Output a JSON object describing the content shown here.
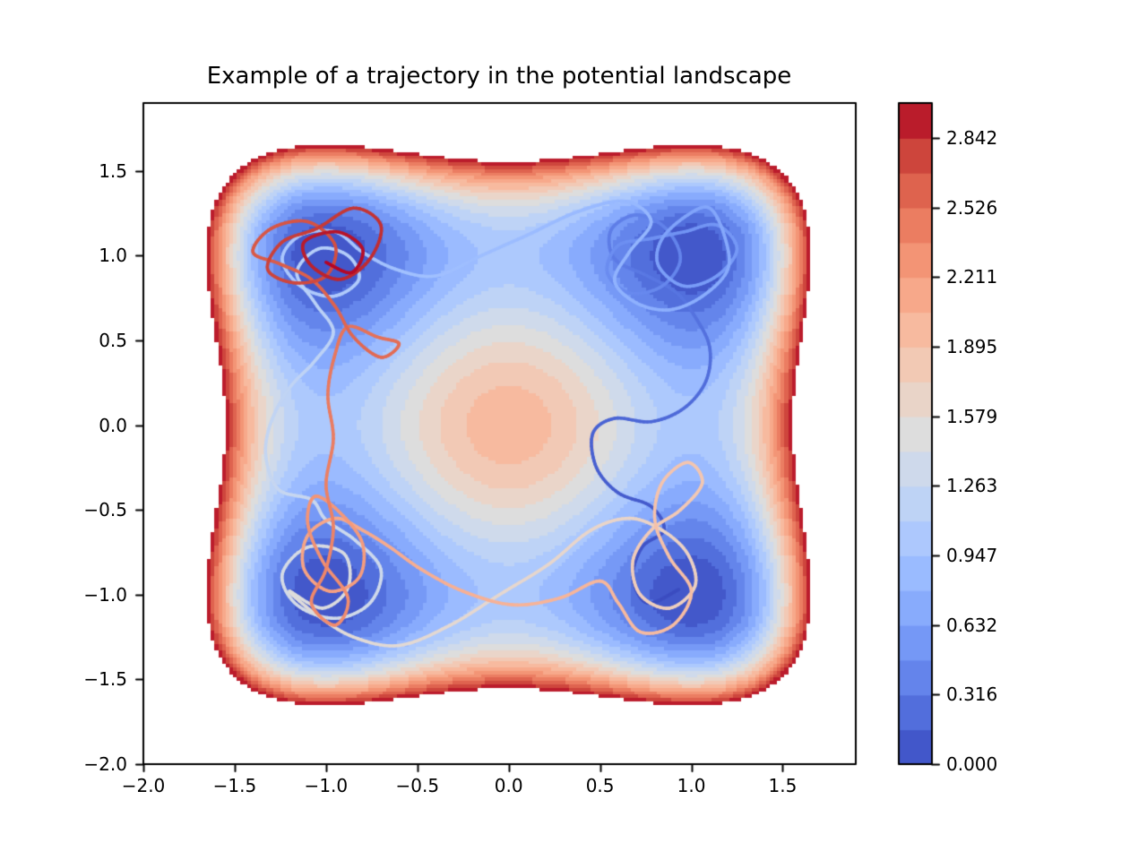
{
  "figure": {
    "background": "#ffffff"
  },
  "chart_data": {
    "type": "contour",
    "title": "Example of a trajectory in the potential landscape",
    "potential": {
      "expression": "V(x, y) = (x² − 1)² + (y² − 1)²",
      "wells": [
        [
          -1,
          1
        ],
        [
          1,
          1
        ],
        [
          -1,
          -1
        ],
        [
          1,
          -1
        ]
      ],
      "center_barrier_height": 2.0
    },
    "x": {
      "range": [
        -2.0,
        1.9
      ],
      "tick_values": [
        -2.0,
        -1.5,
        -1.0,
        -0.5,
        0.0,
        0.5,
        1.0,
        1.5
      ],
      "tick_labels": [
        "−2.0",
        "−1.5",
        "−1.0",
        "−0.5",
        "0.0",
        "0.5",
        "1.0",
        "1.5"
      ]
    },
    "y": {
      "range": [
        -2.0,
        1.9
      ],
      "tick_values": [
        -2.0,
        -1.5,
        -1.0,
        -0.5,
        0.0,
        0.5,
        1.0,
        1.5
      ],
      "tick_labels": [
        "−2.0",
        "−1.5",
        "−1.0",
        "−0.5",
        "0.0",
        "0.5",
        "1.0",
        "1.5"
      ]
    },
    "levels": {
      "min": 0,
      "max": 3,
      "n_bands": 19,
      "above_max": "blank"
    },
    "colormap": {
      "name": "coolwarm",
      "stops": [
        [
          59,
          76,
          192
        ],
        [
          68,
          90,
          204
        ],
        [
          77,
          104,
          215
        ],
        [
          87,
          117,
          225
        ],
        [
          98,
          130,
          234
        ],
        [
          108,
          142,
          241
        ],
        [
          119,
          154,
          247
        ],
        [
          130,
          165,
          251
        ],
        [
          141,
          176,
          254
        ],
        [
          152,
          185,
          255
        ],
        [
          163,
          194,
          255
        ],
        [
          174,
          201,
          253
        ],
        [
          184,
          208,
          249
        ],
        [
          194,
          213,
          244
        ],
        [
          204,
          217,
          238
        ],
        [
          213,
          219,
          230
        ],
        [
          221,
          221,
          221
        ],
        [
          229,
          216,
          209
        ],
        [
          236,
          211,
          197
        ],
        [
          241,
          204,
          185
        ],
        [
          245,
          196,
          173
        ],
        [
          247,
          187,
          160
        ],
        [
          248,
          177,
          149
        ],
        [
          247,
          166,
          135
        ],
        [
          245,
          154,
          123
        ],
        [
          241,
          141,
          111
        ],
        [
          236,
          127,
          99
        ],
        [
          229,
          112,
          88
        ],
        [
          221,
          96,
          76
        ],
        [
          211,
          79,
          66
        ],
        [
          200,
          59,
          55
        ],
        [
          188,
          33,
          45
        ],
        [
          180,
          4,
          38
        ]
      ]
    },
    "colorbar": {
      "tick_values": [
        0.0,
        0.316,
        0.632,
        0.947,
        1.263,
        1.579,
        1.895,
        2.211,
        2.526,
        2.842
      ],
      "tick_labels": [
        "0.000",
        "0.316",
        "0.632",
        "0.947",
        "1.263",
        "1.579",
        "1.895",
        "2.211",
        "2.526",
        "2.842"
      ]
    },
    "trajectory": {
      "color_by": "time",
      "colormap": "coolwarm",
      "linewidth": 3.6,
      "points": [
        [
          0.93,
          -0.97
        ],
        [
          0.76,
          -1.05
        ],
        [
          0.68,
          -0.9
        ],
        [
          0.73,
          -0.72
        ],
        [
          0.85,
          -0.62
        ],
        [
          0.78,
          -0.48
        ],
        [
          0.6,
          -0.4
        ],
        [
          0.48,
          -0.25
        ],
        [
          0.46,
          -0.05
        ],
        [
          0.58,
          0.04
        ],
        [
          0.78,
          0.02
        ],
        [
          0.96,
          0.1
        ],
        [
          1.08,
          0.26
        ],
        [
          1.1,
          0.46
        ],
        [
          1.02,
          0.64
        ],
        [
          0.92,
          0.78
        ],
        [
          0.76,
          0.88
        ],
        [
          0.58,
          0.98
        ],
        [
          0.56,
          1.15
        ],
        [
          0.7,
          1.24
        ],
        [
          0.86,
          1.16
        ],
        [
          0.94,
          0.98
        ],
        [
          0.84,
          0.82
        ],
        [
          0.66,
          0.78
        ],
        [
          0.54,
          0.9
        ],
        [
          0.6,
          1.06
        ],
        [
          0.78,
          1.1
        ],
        [
          0.96,
          1.14
        ],
        [
          1.14,
          1.18
        ],
        [
          1.25,
          1.04
        ],
        [
          1.14,
          0.88
        ],
        [
          0.96,
          0.82
        ],
        [
          0.82,
          0.94
        ],
        [
          0.84,
          1.1
        ],
        [
          0.98,
          1.24
        ],
        [
          1.1,
          1.28
        ],
        [
          1.18,
          1.12
        ],
        [
          1.2,
          0.92
        ],
        [
          1.06,
          0.76
        ],
        [
          0.88,
          0.68
        ],
        [
          0.7,
          0.72
        ],
        [
          0.58,
          0.85
        ],
        [
          0.66,
          1.02
        ],
        [
          0.78,
          1.2
        ],
        [
          0.64,
          1.32
        ],
        [
          0.38,
          1.26
        ],
        [
          0.1,
          1.12
        ],
        [
          -0.15,
          1.0
        ],
        [
          -0.4,
          0.88
        ],
        [
          -0.62,
          0.92
        ],
        [
          -0.8,
          1.02
        ],
        [
          -0.95,
          1.14
        ],
        [
          -1.14,
          1.12
        ],
        [
          -1.24,
          0.98
        ],
        [
          -1.14,
          0.82
        ],
        [
          -0.96,
          0.76
        ],
        [
          -0.82,
          0.86
        ],
        [
          -0.88,
          1.0
        ],
        [
          -1.04,
          1.04
        ],
        [
          -1.16,
          0.9
        ],
        [
          -1.06,
          0.72
        ],
        [
          -0.96,
          0.55
        ],
        [
          -1.06,
          0.38
        ],
        [
          -1.2,
          0.22
        ],
        [
          -1.3,
          0.02
        ],
        [
          -1.33,
          -0.18
        ],
        [
          -1.26,
          -0.38
        ],
        [
          -1.08,
          -0.44
        ],
        [
          -1.0,
          -0.56
        ],
        [
          -0.84,
          -0.68
        ],
        [
          -0.7,
          -0.85
        ],
        [
          -0.76,
          -1.05
        ],
        [
          -0.95,
          -1.14
        ],
        [
          -1.16,
          -1.06
        ],
        [
          -1.24,
          -0.88
        ],
        [
          -1.1,
          -0.72
        ],
        [
          -0.9,
          -0.76
        ],
        [
          -0.88,
          -0.96
        ],
        [
          -1.02,
          -1.08
        ],
        [
          -1.2,
          -0.98
        ],
        [
          -1.05,
          -1.12
        ],
        [
          -0.85,
          -1.25
        ],
        [
          -0.6,
          -1.3
        ],
        [
          -0.32,
          -1.18
        ],
        [
          -0.05,
          -1.0
        ],
        [
          0.22,
          -0.82
        ],
        [
          0.45,
          -0.62
        ],
        [
          0.66,
          -0.55
        ],
        [
          0.84,
          -0.62
        ],
        [
          0.98,
          -0.76
        ],
        [
          1.02,
          -0.95
        ],
        [
          0.88,
          -1.08
        ],
        [
          0.72,
          -1.0
        ],
        [
          0.68,
          -0.8
        ],
        [
          0.78,
          -0.62
        ],
        [
          0.94,
          -0.5
        ],
        [
          1.06,
          -0.34
        ],
        [
          0.98,
          -0.22
        ],
        [
          0.84,
          -0.34
        ],
        [
          0.8,
          -0.56
        ],
        [
          0.88,
          -0.78
        ],
        [
          1.0,
          -0.98
        ],
        [
          0.9,
          -1.18
        ],
        [
          0.72,
          -1.22
        ],
        [
          0.6,
          -1.05
        ],
        [
          0.5,
          -0.92
        ],
        [
          0.28,
          -1.02
        ],
        [
          0.02,
          -1.06
        ],
        [
          -0.25,
          -0.98
        ],
        [
          -0.48,
          -0.85
        ],
        [
          -0.65,
          -0.72
        ],
        [
          -0.8,
          -0.62
        ],
        [
          -0.95,
          -0.55
        ],
        [
          -1.1,
          -0.65
        ],
        [
          -1.12,
          -0.85
        ],
        [
          -0.98,
          -0.98
        ],
        [
          -0.82,
          -0.9
        ],
        [
          -0.8,
          -0.7
        ],
        [
          -0.92,
          -0.52
        ],
        [
          -1.06,
          -0.42
        ],
        [
          -1.1,
          -0.58
        ],
        [
          -1.02,
          -0.8
        ],
        [
          -0.88,
          -1.02
        ],
        [
          -0.95,
          -1.18
        ],
        [
          -1.08,
          -1.05
        ],
        [
          -1.0,
          -0.85
        ],
        [
          -0.96,
          -0.6
        ],
        [
          -1.0,
          -0.35
        ],
        [
          -0.96,
          -0.08
        ],
        [
          -0.99,
          0.18
        ],
        [
          -0.95,
          0.42
        ],
        [
          -0.88,
          0.58
        ],
        [
          -0.72,
          0.52
        ],
        [
          -0.6,
          0.48
        ],
        [
          -0.7,
          0.4
        ],
        [
          -0.85,
          0.52
        ],
        [
          -0.95,
          0.7
        ],
        [
          -1.08,
          0.86
        ],
        [
          -1.25,
          0.95
        ],
        [
          -1.4,
          1.02
        ],
        [
          -1.3,
          1.16
        ],
        [
          -1.1,
          1.2
        ],
        [
          -0.95,
          1.06
        ],
        [
          -1.0,
          0.88
        ],
        [
          -1.18,
          0.84
        ],
        [
          -1.32,
          0.92
        ],
        [
          -1.24,
          1.08
        ],
        [
          -1.05,
          1.16
        ],
        [
          -0.85,
          1.28
        ],
        [
          -0.7,
          1.18
        ],
        [
          -0.76,
          0.98
        ],
        [
          -0.92,
          0.86
        ],
        [
          -1.08,
          0.94
        ],
        [
          -1.12,
          1.08
        ],
        [
          -0.94,
          1.14
        ],
        [
          -0.8,
          1.04
        ],
        [
          -0.86,
          0.9
        ],
        [
          -1.0,
          0.96
        ]
      ]
    }
  }
}
